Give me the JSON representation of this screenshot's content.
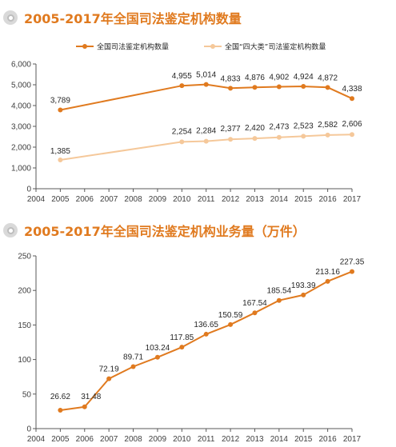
{
  "colors": {
    "title": "#e07a1f",
    "series_dark": "#e07a1f",
    "series_light": "#f5c89a",
    "axis": "#595959"
  },
  "titles": {
    "chart1": "2005-2017年全国司法鉴定机构数量",
    "chart2": "2005-2017年全国司法鉴定机构业务量（万件）"
  },
  "chart_data": [
    {
      "type": "line",
      "title": "2005-2017年全国司法鉴定机构数量",
      "x": [
        2004,
        2005,
        2006,
        2007,
        2008,
        2009,
        2010,
        2011,
        2012,
        2013,
        2014,
        2015,
        2016,
        2017
      ],
      "xlim": [
        2004,
        2017
      ],
      "ylim": [
        0,
        6000
      ],
      "yticks": [
        0,
        1000,
        2000,
        3000,
        4000,
        5000,
        6000
      ],
      "ytick_labels": [
        "0",
        "1,000",
        "2,000",
        "3,000",
        "4,000",
        "5,000",
        "6,000"
      ],
      "grid": false,
      "legend": "top",
      "series": [
        {
          "name": "全国司法鉴定机构数量",
          "color": "#e07a1f",
          "x": [
            2005,
            2010,
            2011,
            2012,
            2013,
            2014,
            2015,
            2016,
            2017
          ],
          "values": [
            3789,
            4955,
            5014,
            4833,
            4876,
            4902,
            4924,
            4872,
            4338
          ],
          "labels": [
            "3,789",
            "4,955",
            "5,014",
            "4,833",
            "4,876",
            "4,902",
            "4,924",
            "4,872",
            "4,338"
          ]
        },
        {
          "name": "全国“四大类”司法鉴定机构数量",
          "color": "#f5c89a",
          "x": [
            2005,
            2010,
            2011,
            2012,
            2013,
            2014,
            2015,
            2016,
            2017
          ],
          "values": [
            1385,
            2254,
            2284,
            2377,
            2420,
            2473,
            2523,
            2582,
            2606
          ],
          "labels": [
            "1,385",
            "2,254",
            "2,284",
            "2,377",
            "2,420",
            "2,473",
            "2,523",
            "2,582",
            "2,606"
          ]
        }
      ]
    },
    {
      "type": "line",
      "title": "2005-2017年全国司法鉴定机构业务量（万件）",
      "x": [
        2004,
        2005,
        2006,
        2007,
        2008,
        2009,
        2010,
        2011,
        2012,
        2013,
        2014,
        2015,
        2016,
        2017
      ],
      "xlim": [
        2004,
        2017
      ],
      "ylim": [
        0,
        250
      ],
      "yticks": [
        0,
        50,
        100,
        150,
        200,
        250
      ],
      "ytick_labels": [
        "0",
        "50",
        "100",
        "150",
        "200",
        "250"
      ],
      "grid": false,
      "legend": "none",
      "series": [
        {
          "color": "#e07a1f",
          "x": [
            2005,
            2006,
            2007,
            2008,
            2009,
            2010,
            2011,
            2012,
            2013,
            2014,
            2015,
            2016,
            2017
          ],
          "values": [
            26.62,
            31.48,
            72.19,
            89.71,
            103.24,
            117.85,
            136.65,
            150.59,
            167.54,
            185.54,
            193.39,
            213.16,
            227.35
          ],
          "labels": [
            "26.62",
            "31.48",
            "72.19",
            "89.71",
            "103.24",
            "117.85",
            "136.65",
            "150.59",
            "167.54",
            "185.54",
            "193.39",
            "213.16",
            "227.35"
          ]
        }
      ]
    }
  ]
}
